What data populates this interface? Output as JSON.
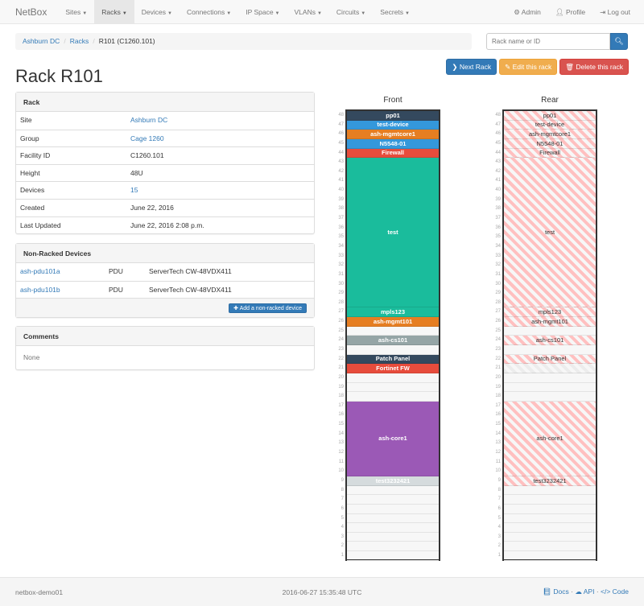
{
  "nav": {
    "brand": "NetBox",
    "items": [
      {
        "label": "Sites"
      },
      {
        "label": "Racks",
        "active": true
      },
      {
        "label": "Devices"
      },
      {
        "label": "Connections"
      },
      {
        "label": "IP Space"
      },
      {
        "label": "VLANs"
      },
      {
        "label": "Circuits"
      },
      {
        "label": "Secrets"
      }
    ],
    "right": [
      {
        "icon": "gear-icon",
        "label": "Admin"
      },
      {
        "icon": "user-icon",
        "label": "Profile"
      },
      {
        "icon": "logout-icon",
        "label": "Log out"
      }
    ]
  },
  "breadcrumb": [
    "Ashburn DC",
    "Racks",
    "R101 (C1260.101)"
  ],
  "search": {
    "placeholder": "Rack name or ID",
    "icon": "search-icon"
  },
  "actions": {
    "next": "Next Rack",
    "edit": "Edit this rack",
    "delete": "Delete this rack"
  },
  "title": "Rack R101",
  "rack_panel": {
    "heading": "Rack",
    "rows": [
      {
        "k": "Site",
        "v": "Ashburn DC",
        "link": true
      },
      {
        "k": "Group",
        "v": "Cage 1260",
        "link": true
      },
      {
        "k": "Facility ID",
        "v": "C1260.101"
      },
      {
        "k": "Height",
        "v": "48U"
      },
      {
        "k": "Devices",
        "v": "15",
        "link": true
      },
      {
        "k": "Created",
        "v": "June 22, 2016"
      },
      {
        "k": "Last Updated",
        "v": "June 22, 2016 2:08 p.m."
      }
    ]
  },
  "nonracked": {
    "heading": "Non-Racked Devices",
    "rows": [
      {
        "name": "ash-pdu101a",
        "role": "PDU",
        "type": "ServerTech CW-48VDX411"
      },
      {
        "name": "ash-pdu101b",
        "role": "PDU",
        "type": "ServerTech CW-48VDX411"
      }
    ],
    "add_label": "Add a non-racked device"
  },
  "comments": {
    "heading": "Comments",
    "text": "None"
  },
  "rack": {
    "height": 48,
    "front_label": "Front",
    "rear_label": "Rear",
    "front": [
      {
        "name": "pp01",
        "unit": 48,
        "u": 1,
        "color": "#34495e"
      },
      {
        "name": "test-device",
        "unit": 47,
        "u": 1,
        "color": "#3498db"
      },
      {
        "name": "ash-mgmtcore1",
        "unit": 46,
        "u": 1,
        "color": "#e67e22"
      },
      {
        "name": "N5548-01",
        "unit": 45,
        "u": 1,
        "color": "#3498db"
      },
      {
        "name": "Firewall",
        "unit": 44,
        "u": 1,
        "color": "#e74c3c"
      },
      {
        "name": "test",
        "unit": 43,
        "u": 16,
        "color": "#1abc9c"
      },
      {
        "name": "mpls123",
        "unit": 27,
        "u": 1,
        "color": "#1abc9c"
      },
      {
        "name": "ash-mgmt101",
        "unit": 26,
        "u": 1,
        "color": "#e67e22"
      },
      {
        "name": "ash-cs101",
        "unit": 24,
        "u": 1,
        "color": "#95a5a6"
      },
      {
        "name": "Patch Panel",
        "unit": 22,
        "u": 1,
        "color": "#34495e"
      },
      {
        "name": "Fortinet FW",
        "unit": 21,
        "u": 1,
        "color": "#e74c3c"
      },
      {
        "name": "ash-core1",
        "unit": 17,
        "u": 8,
        "color": "#9b59b6"
      },
      {
        "name": "test3232421",
        "unit": 9,
        "u": 1,
        "color": "#d5dbdd"
      }
    ],
    "rear": [
      {
        "name": "pp01",
        "unit": 48,
        "u": 1
      },
      {
        "name": "test-device",
        "unit": 47,
        "u": 1
      },
      {
        "name": "ash-mgmtcore1",
        "unit": 46,
        "u": 1
      },
      {
        "name": "N5548-01",
        "unit": 45,
        "u": 1
      },
      {
        "name": "Firewall",
        "unit": 44,
        "u": 1
      },
      {
        "name": "test",
        "unit": 43,
        "u": 16
      },
      {
        "name": "mpls123",
        "unit": 27,
        "u": 1
      },
      {
        "name": "ash-mgmt101",
        "unit": 26,
        "u": 1
      },
      {
        "name": "ash-cs101",
        "unit": 24,
        "u": 1
      },
      {
        "name": "Patch Panel",
        "unit": 22,
        "u": 1
      },
      {
        "name": "",
        "unit": 21,
        "u": 1,
        "faint": true
      },
      {
        "name": "ash-core1",
        "unit": 17,
        "u": 8
      },
      {
        "name": "test3232421",
        "unit": 9,
        "u": 1
      }
    ]
  },
  "footer": {
    "host": "netbox-demo01",
    "time": "2016-06-27 15:35:48 UTC",
    "docs": "Docs",
    "api": "API",
    "code": "Code"
  }
}
